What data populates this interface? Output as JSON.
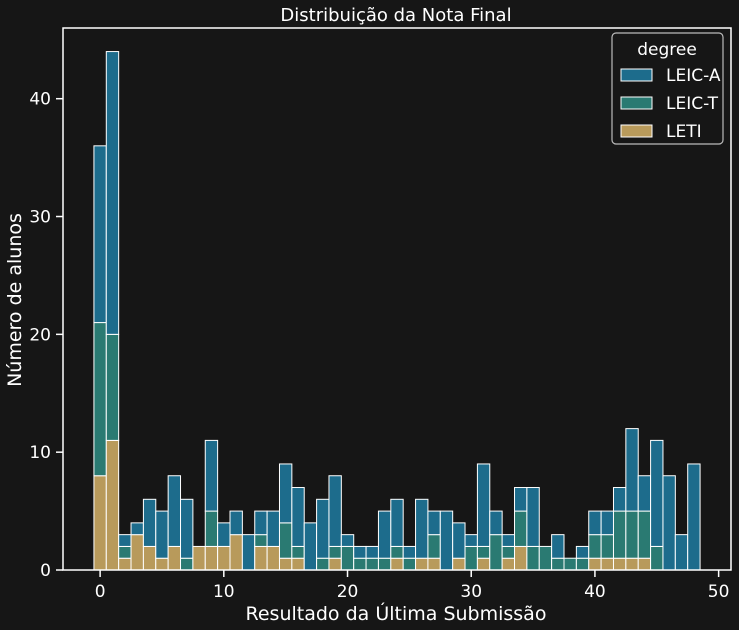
{
  "chart_data": {
    "type": "bar",
    "stacked": true,
    "title": "Distribuição da Nota Final",
    "xlabel": "Resultado da Última Submissão",
    "ylabel": "Número de alunos",
    "xlim": [
      -3,
      51
    ],
    "ylim": [
      0,
      46
    ],
    "x_ticks": [
      0,
      10,
      20,
      30,
      40,
      50
    ],
    "y_ticks": [
      0,
      10,
      20,
      30,
      40
    ],
    "grid": false,
    "legend": {
      "title": "degree",
      "position": "top-right",
      "entries": [
        "LEIC-A",
        "LEIC-T",
        "LETI"
      ]
    },
    "bin_width": 1,
    "bin_starts": [
      -0.5,
      0.5,
      1.5,
      2.5,
      3.5,
      4.5,
      5.5,
      6.5,
      7.5,
      8.5,
      9.5,
      10.5,
      11.5,
      12.5,
      13.5,
      14.5,
      15.5,
      16.5,
      17.5,
      18.5,
      19.5,
      20.5,
      21.5,
      22.5,
      23.5,
      24.5,
      25.5,
      26.5,
      27.5,
      28.5,
      29.5,
      30.5,
      31.5,
      32.5,
      33.5,
      34.5,
      35.5,
      36.5,
      37.5,
      38.5,
      39.5,
      40.5,
      41.5,
      42.5,
      43.5,
      44.5,
      45.5,
      46.5,
      47.5
    ],
    "series": [
      {
        "name": "LETI",
        "color": "#b89a5b",
        "values": [
          8,
          11,
          1,
          3,
          2,
          1,
          2,
          0,
          2,
          2,
          2,
          3,
          0,
          2,
          2,
          1,
          1,
          0,
          0,
          1,
          0,
          0,
          0,
          0,
          1,
          0,
          1,
          1,
          0,
          1,
          0,
          1,
          0,
          1,
          2,
          0,
          0,
          0,
          0,
          0,
          1,
          1,
          1,
          1,
          1,
          0,
          0,
          0,
          0
        ]
      },
      {
        "name": "LEIC-T",
        "color": "#2a7a72",
        "values": [
          13,
          9,
          1,
          0,
          0,
          0,
          0,
          1,
          0,
          3,
          0,
          0,
          0,
          1,
          0,
          3,
          1,
          0,
          1,
          1,
          2,
          1,
          1,
          1,
          1,
          1,
          0,
          2,
          0,
          0,
          2,
          1,
          3,
          1,
          3,
          2,
          2,
          1,
          1,
          1,
          2,
          2,
          4,
          4,
          4,
          2,
          0,
          0,
          0
        ]
      },
      {
        "name": "LEIC-A",
        "color": "#1d6c8c",
        "values": [
          15,
          24,
          1,
          1,
          4,
          4,
          6,
          5,
          0,
          6,
          2,
          2,
          3,
          2,
          3,
          5,
          5,
          4,
          5,
          6,
          1,
          1,
          1,
          4,
          4,
          1,
          5,
          2,
          5,
          3,
          1,
          7,
          2,
          1,
          2,
          5,
          0,
          2,
          0,
          1,
          2,
          2,
          2,
          7,
          3,
          9,
          8,
          3,
          9
        ]
      }
    ]
  }
}
